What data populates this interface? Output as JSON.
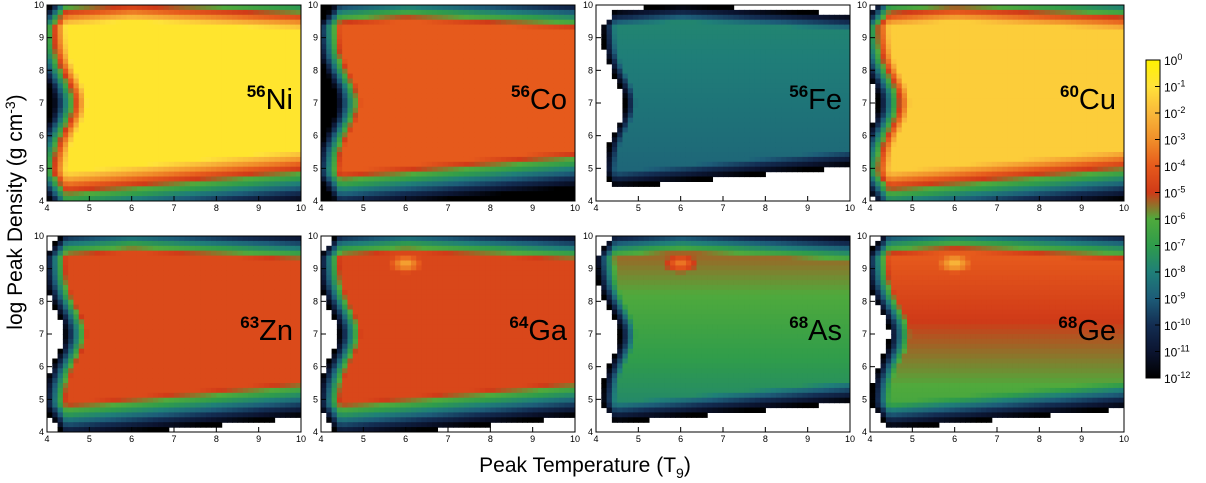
{
  "chart_data": {
    "type": "heatmap",
    "xlabel": "Peak Temperature (T",
    "xlabel_sub": "9",
    "xlabel_end": ")",
    "ylabel": "log Peak Density (g cm",
    "ylabel_sup": "-3",
    "ylabel_end": ")",
    "xlim": [
      4,
      10
    ],
    "ylim": [
      4,
      10
    ],
    "x_ticks": [
      4,
      5,
      6,
      7,
      8,
      9,
      10
    ],
    "y_ticks": [
      4,
      5,
      6,
      7,
      8,
      9,
      10
    ],
    "colorbar": {
      "scale": "log",
      "range": [
        1e-12,
        1
      ],
      "ticks": [
        {
          "base": "10",
          "exp": "0"
        },
        {
          "base": "10",
          "exp": "-1"
        },
        {
          "base": "10",
          "exp": "-2"
        },
        {
          "base": "10",
          "exp": "-3"
        },
        {
          "base": "10",
          "exp": "-4"
        },
        {
          "base": "10",
          "exp": "-5"
        },
        {
          "base": "10",
          "exp": "-6"
        },
        {
          "base": "10",
          "exp": "-7"
        },
        {
          "base": "10",
          "exp": "-8"
        },
        {
          "base": "10",
          "exp": "-9"
        },
        {
          "base": "10",
          "exp": "-10"
        },
        {
          "base": "10",
          "exp": "-11"
        },
        {
          "base": "10",
          "exp": "-12"
        }
      ],
      "colors": [
        "#fff200",
        "#ffe23a",
        "#f9b83a",
        "#f08f2a",
        "#e65a1c",
        "#d03a18",
        "#4faa3c",
        "#2f9c4b",
        "#1f7f78",
        "#1d5c78",
        "#132d52",
        "#0b1430",
        "#000000"
      ]
    },
    "panels": [
      {
        "mass": "56",
        "element": "Ni",
        "base": -0.8,
        "peak_zone": "yellow",
        "white_low": false
      },
      {
        "mass": "56",
        "element": "Co",
        "base": -4.0,
        "peak_zone": "orange",
        "white_low": false
      },
      {
        "mass": "56",
        "element": "Fe",
        "base": -8.3,
        "peak_zone": "teal",
        "white_low": true
      },
      {
        "mass": "60",
        "element": "Cu",
        "base": -1.5,
        "peak_zone": "yellow",
        "white_low": true
      },
      {
        "mass": "63",
        "element": "Zn",
        "base": -4.5,
        "peak_zone": "orange",
        "white_low": true
      },
      {
        "mass": "64",
        "element": "Ga",
        "base": -4.6,
        "peak_zone": "orange",
        "white_low": true
      },
      {
        "mass": "68",
        "element": "As",
        "base": -6.6,
        "peak_zone": "green",
        "white_low": true
      },
      {
        "mass": "68",
        "element": "Ge",
        "base": -5.2,
        "peak_zone": "red",
        "white_low": true
      }
    ]
  }
}
